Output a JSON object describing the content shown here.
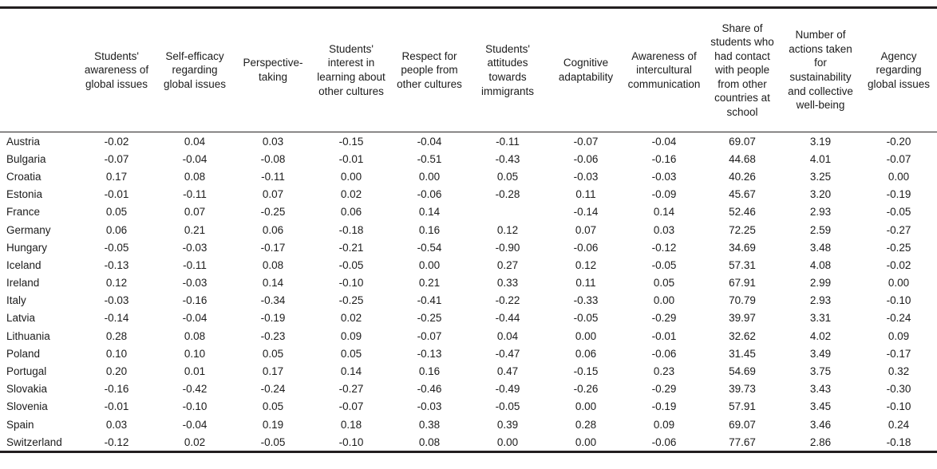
{
  "table": {
    "columns": [
      "Students' awareness of global issues",
      "Self-efficacy regarding global issues",
      "Perspective-taking",
      "Students' interest in learning about other cultures",
      "Respect for people from other cultures",
      "Students' attitudes towards immigrants",
      "Cognitive adaptability",
      "Awareness of intercultural communication",
      "Share of students who had contact with people from other countries at school",
      "Number of actions taken for sustainability and collective well-being",
      "Agency regarding global issues"
    ],
    "rows": [
      {
        "country": "Austria",
        "values": [
          "-0.02",
          "0.04",
          "0.03",
          "-0.15",
          "-0.04",
          "-0.11",
          "-0.07",
          "-0.04",
          "69.07",
          "3.19",
          "-0.20"
        ]
      },
      {
        "country": "Bulgaria",
        "values": [
          "-0.07",
          "-0.04",
          "-0.08",
          "-0.01",
          "-0.51",
          "-0.43",
          "-0.06",
          "-0.16",
          "44.68",
          "4.01",
          "-0.07"
        ]
      },
      {
        "country": "Croatia",
        "values": [
          "0.17",
          "0.08",
          "-0.11",
          "0.00",
          "0.00",
          "0.05",
          "-0.03",
          "-0.03",
          "40.26",
          "3.25",
          "0.00"
        ]
      },
      {
        "country": "Estonia",
        "values": [
          "-0.01",
          "-0.11",
          "0.07",
          "0.02",
          "-0.06",
          "-0.28",
          "0.11",
          "-0.09",
          "45.67",
          "3.20",
          "-0.19"
        ]
      },
      {
        "country": "France",
        "values": [
          "0.05",
          "0.07",
          "-0.25",
          "0.06",
          "0.14",
          "",
          "-0.14",
          "0.14",
          "52.46",
          "2.93",
          "-0.05"
        ]
      },
      {
        "country": "Germany",
        "values": [
          "0.06",
          "0.21",
          "0.06",
          "-0.18",
          "0.16",
          "0.12",
          "0.07",
          "0.03",
          "72.25",
          "2.59",
          "-0.27"
        ]
      },
      {
        "country": "Hungary",
        "values": [
          "-0.05",
          "-0.03",
          "-0.17",
          "-0.21",
          "-0.54",
          "-0.90",
          "-0.06",
          "-0.12",
          "34.69",
          "3.48",
          "-0.25"
        ]
      },
      {
        "country": "Iceland",
        "values": [
          "-0.13",
          "-0.11",
          "0.08",
          "-0.05",
          "0.00",
          "0.27",
          "0.12",
          "-0.05",
          "57.31",
          "4.08",
          "-0.02"
        ]
      },
      {
        "country": "Ireland",
        "values": [
          "0.12",
          "-0.03",
          "0.14",
          "-0.10",
          "0.21",
          "0.33",
          "0.11",
          "0.05",
          "67.91",
          "2.99",
          "0.00"
        ]
      },
      {
        "country": "Italy",
        "values": [
          "-0.03",
          "-0.16",
          "-0.34",
          "-0.25",
          "-0.41",
          "-0.22",
          "-0.33",
          "0.00",
          "70.79",
          "2.93",
          "-0.10"
        ]
      },
      {
        "country": "Latvia",
        "values": [
          "-0.14",
          "-0.04",
          "-0.19",
          "0.02",
          "-0.25",
          "-0.44",
          "-0.05",
          "-0.29",
          "39.97",
          "3.31",
          "-0.24"
        ]
      },
      {
        "country": "Lithuania",
        "values": [
          "0.28",
          "0.08",
          "-0.23",
          "0.09",
          "-0.07",
          "0.04",
          "0.00",
          "-0.01",
          "32.62",
          "4.02",
          "0.09"
        ]
      },
      {
        "country": "Poland",
        "values": [
          "0.10",
          "0.10",
          "0.05",
          "0.05",
          "-0.13",
          "-0.47",
          "0.06",
          "-0.06",
          "31.45",
          "3.49",
          "-0.17"
        ]
      },
      {
        "country": "Portugal",
        "values": [
          "0.20",
          "0.01",
          "0.17",
          "0.14",
          "0.16",
          "0.47",
          "-0.15",
          "0.23",
          "54.69",
          "3.75",
          "0.32"
        ]
      },
      {
        "country": "Slovakia",
        "values": [
          "-0.16",
          "-0.42",
          "-0.24",
          "-0.27",
          "-0.46",
          "-0.49",
          "-0.26",
          "-0.29",
          "39.73",
          "3.43",
          "-0.30"
        ]
      },
      {
        "country": "Slovenia",
        "values": [
          "-0.01",
          "-0.10",
          "0.05",
          "-0.07",
          "-0.03",
          "-0.05",
          "0.00",
          "-0.19",
          "57.91",
          "3.45",
          "-0.10"
        ]
      },
      {
        "country": "Spain",
        "values": [
          "0.03",
          "-0.04",
          "0.19",
          "0.18",
          "0.38",
          "0.39",
          "0.28",
          "0.09",
          "69.07",
          "3.46",
          "0.24"
        ]
      },
      {
        "country": "Switzerland",
        "values": [
          "-0.12",
          "0.02",
          "-0.05",
          "-0.10",
          "0.08",
          "0.00",
          "0.00",
          "-0.06",
          "77.67",
          "2.86",
          "-0.18"
        ]
      }
    ]
  },
  "chart_data": {
    "type": "table",
    "title": "",
    "categories": [
      "Austria",
      "Bulgaria",
      "Croatia",
      "Estonia",
      "France",
      "Germany",
      "Hungary",
      "Iceland",
      "Ireland",
      "Italy",
      "Latvia",
      "Lithuania",
      "Poland",
      "Portugal",
      "Slovakia",
      "Slovenia",
      "Spain",
      "Switzerland"
    ],
    "series": [
      {
        "name": "Students' awareness of global issues",
        "values": [
          -0.02,
          -0.07,
          0.17,
          -0.01,
          0.05,
          0.06,
          -0.05,
          -0.13,
          0.12,
          -0.03,
          -0.14,
          0.28,
          0.1,
          0.2,
          -0.16,
          -0.01,
          0.03,
          -0.12
        ]
      },
      {
        "name": "Self-efficacy regarding global issues",
        "values": [
          0.04,
          -0.04,
          0.08,
          -0.11,
          0.07,
          0.21,
          -0.03,
          -0.11,
          -0.03,
          -0.16,
          -0.04,
          0.08,
          0.1,
          0.01,
          -0.42,
          -0.1,
          -0.04,
          0.02
        ]
      },
      {
        "name": "Perspective-taking",
        "values": [
          0.03,
          -0.08,
          -0.11,
          0.07,
          -0.25,
          0.06,
          -0.17,
          0.08,
          0.14,
          -0.34,
          -0.19,
          -0.23,
          0.05,
          0.17,
          -0.24,
          0.05,
          0.19,
          -0.05
        ]
      },
      {
        "name": "Students' interest in learning about other cultures",
        "values": [
          -0.15,
          -0.01,
          0.0,
          0.02,
          0.06,
          -0.18,
          -0.21,
          -0.05,
          -0.1,
          -0.25,
          0.02,
          0.09,
          0.05,
          0.14,
          -0.27,
          -0.07,
          0.18,
          -0.1
        ]
      },
      {
        "name": "Respect for people from other cultures",
        "values": [
          -0.04,
          -0.51,
          0.0,
          -0.06,
          0.14,
          0.16,
          -0.54,
          0.0,
          0.21,
          -0.41,
          -0.25,
          -0.07,
          -0.13,
          0.16,
          -0.46,
          -0.03,
          0.38,
          0.08
        ]
      },
      {
        "name": "Students' attitudes towards immigrants",
        "values": [
          -0.11,
          -0.43,
          0.05,
          -0.28,
          null,
          0.12,
          -0.9,
          0.27,
          0.33,
          -0.22,
          -0.44,
          0.04,
          -0.47,
          0.47,
          -0.49,
          -0.05,
          0.39,
          0.0
        ]
      },
      {
        "name": "Cognitive adaptability",
        "values": [
          -0.07,
          -0.06,
          -0.03,
          0.11,
          -0.14,
          0.07,
          -0.06,
          0.12,
          0.11,
          -0.33,
          -0.05,
          0.0,
          0.06,
          -0.15,
          -0.26,
          0.0,
          0.28,
          0.0
        ]
      },
      {
        "name": "Awareness of intercultural communication",
        "values": [
          -0.04,
          -0.16,
          -0.03,
          -0.09,
          0.14,
          0.03,
          -0.12,
          -0.05,
          0.05,
          0.0,
          -0.29,
          -0.01,
          -0.06,
          0.23,
          -0.29,
          -0.19,
          0.09,
          -0.06
        ]
      },
      {
        "name": "Share of students who had contact with people from other countries at school",
        "values": [
          69.07,
          44.68,
          40.26,
          45.67,
          52.46,
          72.25,
          34.69,
          57.31,
          67.91,
          70.79,
          39.97,
          32.62,
          31.45,
          54.69,
          39.73,
          57.91,
          69.07,
          77.67
        ]
      },
      {
        "name": "Number of actions taken for sustainability and collective well-being",
        "values": [
          3.19,
          4.01,
          3.25,
          3.2,
          2.93,
          2.59,
          3.48,
          4.08,
          2.99,
          2.93,
          3.31,
          4.02,
          3.49,
          3.75,
          3.43,
          3.45,
          3.46,
          2.86
        ]
      },
      {
        "name": "Agency regarding global issues",
        "values": [
          -0.2,
          -0.07,
          0.0,
          -0.19,
          -0.05,
          -0.27,
          -0.25,
          -0.02,
          0.0,
          -0.1,
          -0.24,
          0.09,
          -0.17,
          0.32,
          -0.3,
          -0.1,
          0.24,
          -0.18
        ]
      }
    ]
  }
}
